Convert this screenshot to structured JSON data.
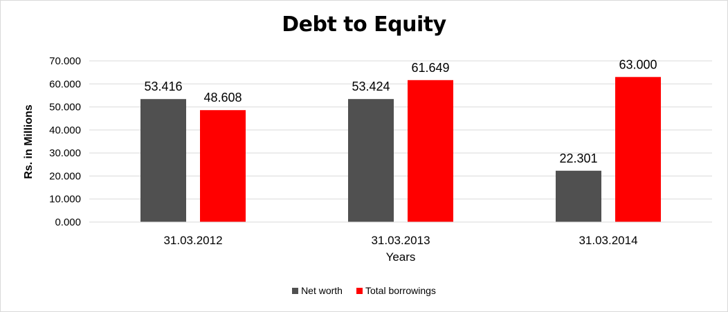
{
  "chart_data": {
    "type": "bar",
    "title": "Debt to Equity",
    "xlabel": "Years",
    "ylabel": "Rs. in Millions",
    "categories": [
      "31.03.2012",
      "31.03.2013",
      "31.03.2014"
    ],
    "series": [
      {
        "name": "Net worth",
        "values": [
          53.416,
          53.424,
          22.301
        ],
        "labels": [
          "53.416",
          "53.424",
          "22.301"
        ],
        "color": "#505050"
      },
      {
        "name": "Total borrowings",
        "values": [
          48.608,
          61.649,
          63.0
        ],
        "labels": [
          "48.608",
          "61.649",
          "63.000"
        ],
        "color": "#ff0000"
      }
    ],
    "ylim": [
      0,
      70
    ],
    "yticks": [
      "0.000",
      "10.000",
      "20.000",
      "30.000",
      "40.000",
      "50.000",
      "60.000",
      "70.000"
    ],
    "grid": true,
    "legend": "bottom"
  }
}
